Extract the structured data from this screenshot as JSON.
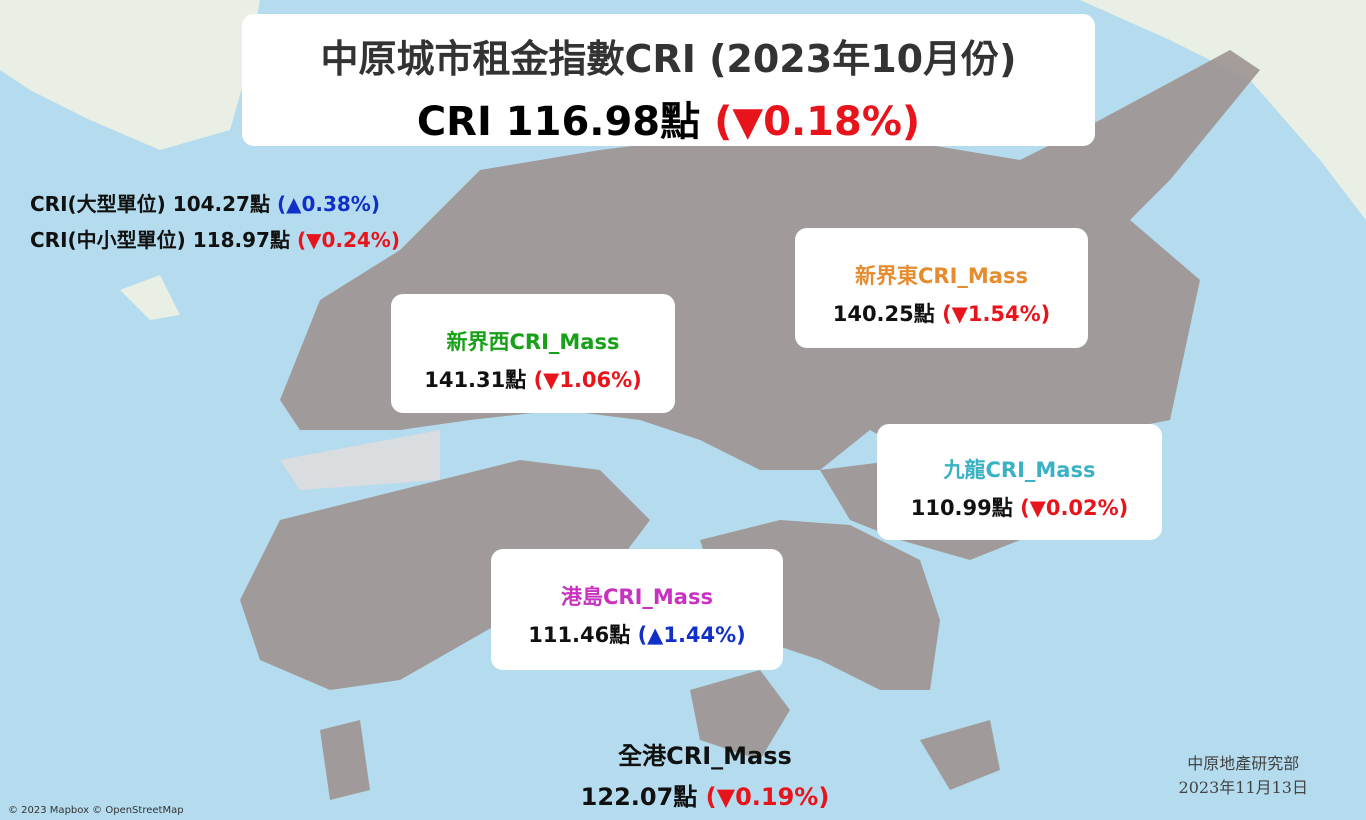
{
  "header": {
    "title": "中原城市租金指數CRI (2023年10月份)",
    "index": "CRI 116.98點",
    "change": "(▼0.18%)"
  },
  "sub_indices": [
    {
      "label": "CRI(大型單位)",
      "value": "104.27點",
      "change": "(▲0.38%)"
    },
    {
      "label": "CRI(中小型單位)",
      "value": "118.97點",
      "change": "(▼0.24%)"
    }
  ],
  "regions": [
    {
      "name": "新界西CRI_Mass",
      "value": "141.31點",
      "change": "(▼1.06%)"
    },
    {
      "name": "新界東CRI_Mass",
      "value": "140.25點",
      "change": "(▼1.54%)"
    },
    {
      "name": "九龍CRI_Mass",
      "value": "110.99點",
      "change": "(▼0.02%)"
    },
    {
      "name": "港島CRI_Mass",
      "value": "111.46點",
      "change": "(▲1.44%)"
    }
  ],
  "overall": {
    "name": "全港CRI_Mass",
    "value": "122.07點",
    "change": "(▼0.19%)"
  },
  "source": {
    "org": "中原地產研究部",
    "date": "2023年11月13日"
  },
  "attribution": "© 2023 Mapbox © OpenStreetMap"
}
